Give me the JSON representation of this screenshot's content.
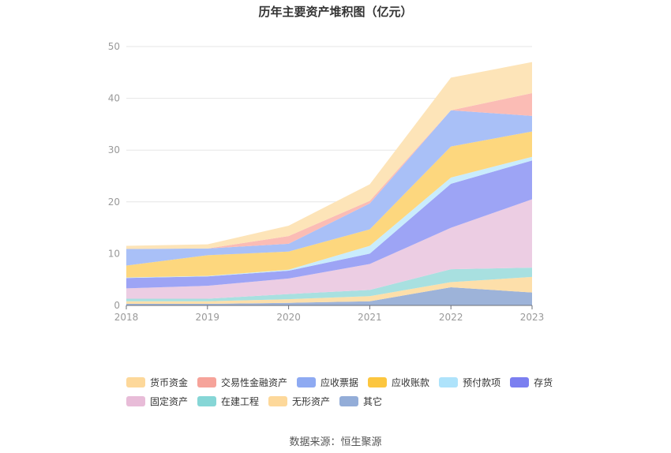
{
  "title": "历年主要资产堆积图（亿元）",
  "source": "数据来源：恒生聚源",
  "chart_data": {
    "type": "area",
    "stacked": true,
    "x": [
      "2018",
      "2019",
      "2020",
      "2021",
      "2022",
      "2023"
    ],
    "ylim": [
      0,
      50
    ],
    "yticks": [
      0,
      10,
      20,
      30,
      40,
      50
    ],
    "grid": true,
    "legend_position": "bottom",
    "series": [
      {
        "name": "其它",
        "color": "#9db3d9",
        "values": [
          0.3,
          0.3,
          0.5,
          0.8,
          3.5,
          2.5
        ]
      },
      {
        "name": "无形资产",
        "color": "#fddfaa",
        "values": [
          0.5,
          0.5,
          0.7,
          1.0,
          1.0,
          3.0
        ]
      },
      {
        "name": "在建工程",
        "color": "#a8e0e0",
        "values": [
          0.5,
          0.5,
          1.0,
          1.2,
          2.5,
          1.8
        ]
      },
      {
        "name": "固定资产",
        "color": "#eccde3",
        "values": [
          2.0,
          2.5,
          3.0,
          5.0,
          8.0,
          13.2
        ]
      },
      {
        "name": "存货",
        "color": "#9da4f5",
        "values": [
          2.0,
          1.8,
          1.5,
          2.0,
          8.5,
          7.5
        ]
      },
      {
        "name": "预付款项",
        "color": "#c9ecfd",
        "values": [
          0.1,
          0.1,
          0.2,
          1.5,
          1.2,
          0.7
        ]
      },
      {
        "name": "应收账款",
        "color": "#fdd77e",
        "values": [
          2.3,
          4.0,
          3.5,
          3.2,
          6.0,
          4.9
        ]
      },
      {
        "name": "应收票据",
        "color": "#a9c0f7",
        "values": [
          3.2,
          1.3,
          1.5,
          5.0,
          7.0,
          3.0
        ]
      },
      {
        "name": "交易性金融资产",
        "color": "#fbbcb5",
        "values": [
          0.0,
          0.0,
          1.5,
          0.5,
          0.0,
          4.4
        ]
      },
      {
        "name": "货币资金",
        "color": "#fde4b8",
        "values": [
          0.6,
          0.8,
          2.0,
          3.2,
          6.3,
          6.0
        ]
      }
    ],
    "legend_order": [
      "货币资金",
      "交易性金融资产",
      "应收票据",
      "应收账款",
      "预付款项",
      "存货",
      "固定资产",
      "在建工程",
      "无形资产",
      "其它"
    ],
    "legend_colors": {
      "货币资金": "#fdd89a",
      "交易性金融资产": "#f6a39a",
      "应收票据": "#8eaaf2",
      "应收账款": "#fcc63f",
      "预付款项": "#aee3fb",
      "存货": "#7b7ff0",
      "固定资产": "#e8bcd8",
      "在建工程": "#86d6d6",
      "无形资产": "#fdd89a",
      "其它": "#93add8"
    }
  }
}
